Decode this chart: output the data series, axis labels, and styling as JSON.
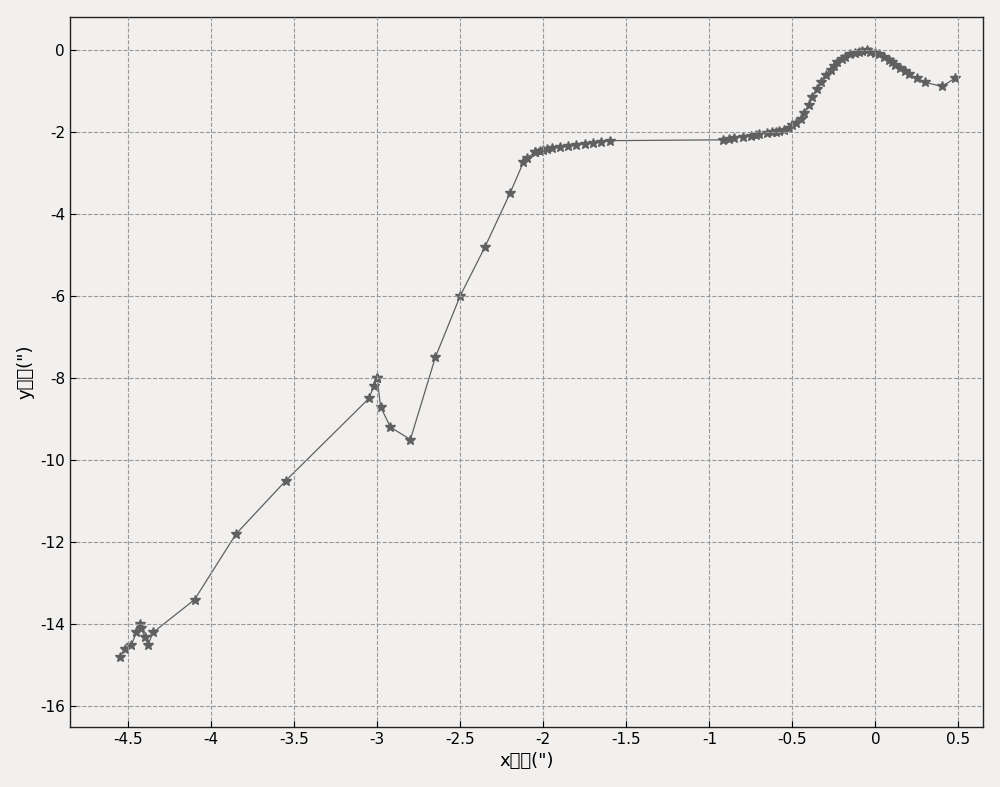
{
  "x_data": [
    -4.55,
    -4.52,
    -4.48,
    -4.45,
    -4.43,
    -4.42,
    -4.4,
    -4.38,
    -4.35,
    -4.1,
    -3.85,
    -3.55,
    -3.05,
    -3.02,
    -3.0,
    -3.0,
    -2.98,
    -2.92,
    -2.8,
    -2.65,
    -2.5,
    -2.35,
    -2.2,
    -2.12,
    -2.1,
    -2.05,
    -2.05,
    -2.02,
    -2.0,
    -1.98,
    -1.95,
    -1.9,
    -1.85,
    -1.8,
    -1.75,
    -1.7,
    -1.65,
    -1.6,
    -0.92,
    -0.88,
    -0.85,
    -0.8,
    -0.75,
    -0.72,
    -0.7,
    -0.65,
    -0.62,
    -0.6,
    -0.58,
    -0.55,
    -0.52,
    -0.5,
    -0.48,
    -0.45,
    -0.43,
    -0.4,
    -0.38,
    -0.35,
    -0.33,
    -0.3,
    -0.27,
    -0.25,
    -0.23,
    -0.2,
    -0.18,
    -0.15,
    -0.12,
    -0.1,
    -0.08,
    -0.05,
    -0.03,
    0.0,
    0.02,
    0.05,
    0.08,
    0.1,
    0.12,
    0.15,
    0.18,
    0.2,
    0.25,
    0.3,
    0.4,
    0.48
  ],
  "y_data": [
    -14.8,
    -14.6,
    -14.5,
    -14.2,
    -14.0,
    -14.1,
    -14.3,
    -14.5,
    -14.2,
    -13.4,
    -11.8,
    -10.5,
    -8.5,
    -8.2,
    -8.0,
    -8.0,
    -8.7,
    -9.2,
    -9.5,
    -7.5,
    -6.0,
    -4.8,
    -3.5,
    -2.75,
    -2.65,
    -2.5,
    -2.5,
    -2.48,
    -2.45,
    -2.42,
    -2.4,
    -2.38,
    -2.35,
    -2.33,
    -2.3,
    -2.28,
    -2.25,
    -2.22,
    -2.2,
    -2.18,
    -2.15,
    -2.12,
    -2.1,
    -2.08,
    -2.05,
    -2.03,
    -2.02,
    -2.0,
    -1.98,
    -1.95,
    -1.9,
    -1.85,
    -1.8,
    -1.7,
    -1.55,
    -1.35,
    -1.15,
    -0.95,
    -0.78,
    -0.62,
    -0.5,
    -0.4,
    -0.3,
    -0.22,
    -0.18,
    -0.12,
    -0.08,
    -0.05,
    -0.03,
    -0.02,
    -0.05,
    -0.08,
    -0.12,
    -0.18,
    -0.25,
    -0.3,
    -0.38,
    -0.45,
    -0.52,
    -0.6,
    -0.7,
    -0.8,
    -0.9,
    -0.7
  ],
  "line_color": "#606060",
  "marker": "*",
  "marker_size": 7,
  "line_width": 0.9,
  "xlabel": "x方向(\")",
  "ylabel": "y方向(\")",
  "xlim": [
    -4.85,
    0.65
  ],
  "ylim": [
    -16.5,
    0.8
  ],
  "xticks": [
    -4.5,
    -4.0,
    -3.5,
    -3.0,
    -2.5,
    -2.0,
    -1.5,
    -1.0,
    -0.5,
    0.0,
    0.5
  ],
  "yticks": [
    0,
    -2,
    -4,
    -6,
    -8,
    -10,
    -12,
    -14,
    -16
  ],
  "grid_color": "#999999",
  "grid_linestyle": "--",
  "background_color": "#f2f0ee",
  "xlabel_fontsize": 13,
  "ylabel_fontsize": 13,
  "tick_fontsize": 11
}
